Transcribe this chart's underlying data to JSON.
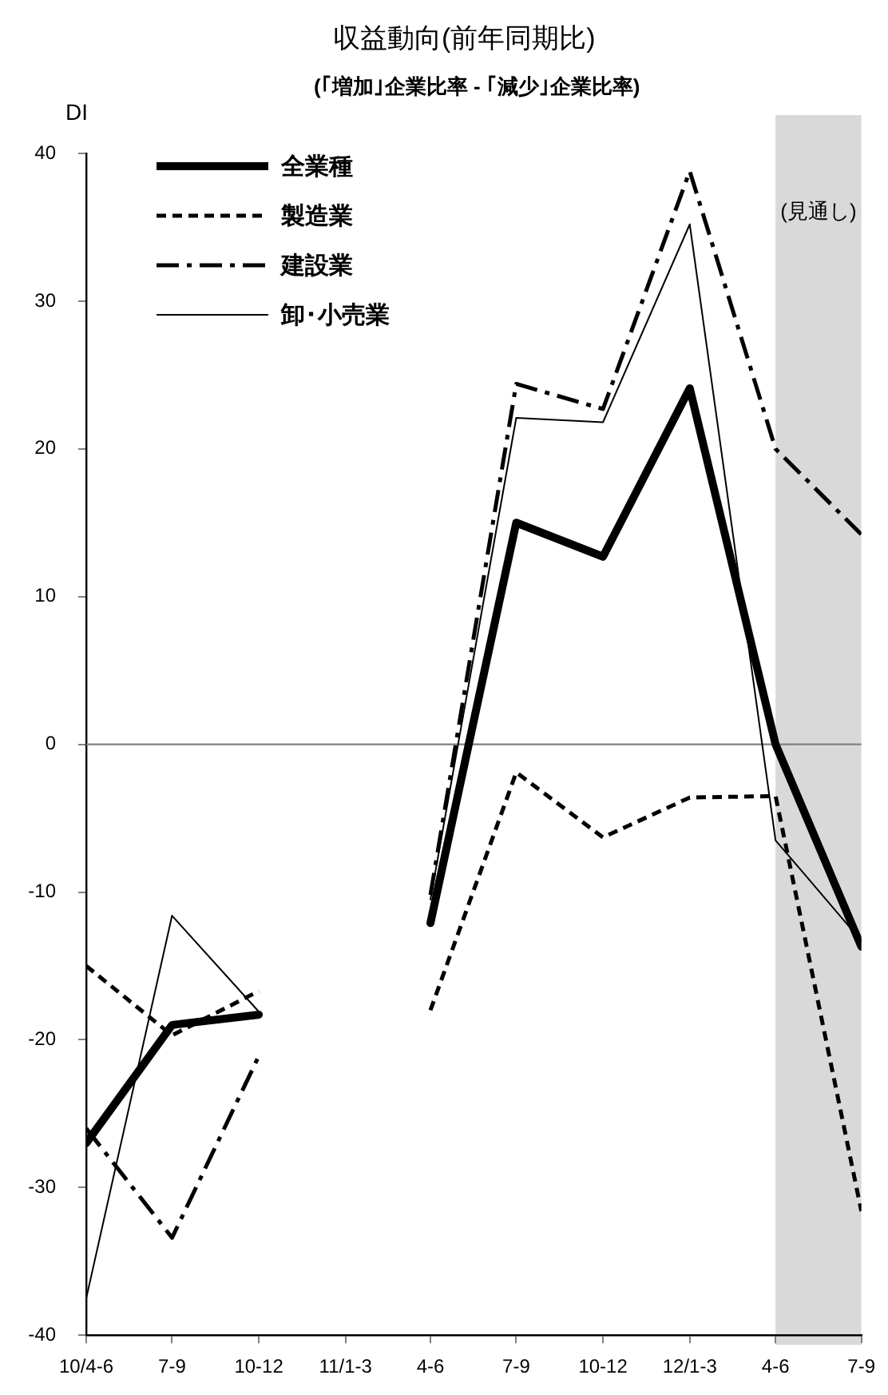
{
  "chart_data": {
    "type": "line",
    "title": "収益動向(前年同期比)",
    "subtitle": "(｢増加｣企業比率 - ｢減少｣企業比率)",
    "ylabel": "DI",
    "x": [
      "2010-04",
      "2010-07",
      "2010-10",
      "2011-01",
      "2011-04",
      "2011-07",
      "2011-10",
      "2012-01",
      "2012-04",
      "2012-07"
    ],
    "series": [
      {
        "name": "全業種",
        "color": "#000000",
        "line_style": "solid",
        "values": [
          -27,
          -19,
          -18.3,
          null,
          -12.1,
          15,
          12.7,
          24.1,
          0,
          -13.7
        ]
      },
      {
        "name": "製造業",
        "color": "#000000",
        "line_style": "dashed",
        "values": [
          -15,
          -19.7,
          -16.7,
          null,
          -18,
          -1.9,
          -6.3,
          -3.6,
          -3.5,
          -31.6
        ]
      },
      {
        "name": "建設業",
        "color": "#000000",
        "line_style": "dashdot",
        "values": [
          -26,
          -33.4,
          -21.1,
          null,
          -10.2,
          24.4,
          22.7,
          38.8,
          20,
          14.2
        ]
      },
      {
        "name": "卸･小売業",
        "color": "#000000",
        "line_style": "solid",
        "values": [
          -37.5,
          -11.6,
          -18.1,
          null,
          -10.5,
          22.1,
          21.8,
          35.2,
          -6.5,
          -13.3
        ]
      }
    ],
    "xlim": [
      "2010-04",
      "2012-07"
    ],
    "xticks": [
      {
        "value": "2010-04",
        "label": "10/4-6"
      },
      {
        "value": "2010-07",
        "label": "7-9"
      },
      {
        "value": "2010-10",
        "label": "10-12"
      },
      {
        "value": "2011-01",
        "label": "11/1-3"
      },
      {
        "value": "2011-04",
        "label": "4-6"
      },
      {
        "value": "2011-07",
        "label": "7-9"
      },
      {
        "value": "2011-10",
        "label": "10-12"
      },
      {
        "value": "2012-01",
        "label": "12/1-3"
      },
      {
        "value": "2012-04",
        "label": "4-6"
      },
      {
        "value": "2012-07",
        "label": "7-9"
      }
    ],
    "ylim": [
      -40,
      40
    ],
    "yticks": [
      -40,
      -30,
      -20,
      -10,
      0,
      10,
      20,
      30,
      40
    ],
    "ref_lines": [
      {
        "axis": "y",
        "value": 0,
        "color": "#808080"
      }
    ],
    "bands": [
      {
        "axis": "x",
        "from": "2012-04",
        "to": "2012-07",
        "label": "(見通し)",
        "color": "#d9d9d9"
      }
    ],
    "legend": "top left",
    "marker": "none"
  }
}
